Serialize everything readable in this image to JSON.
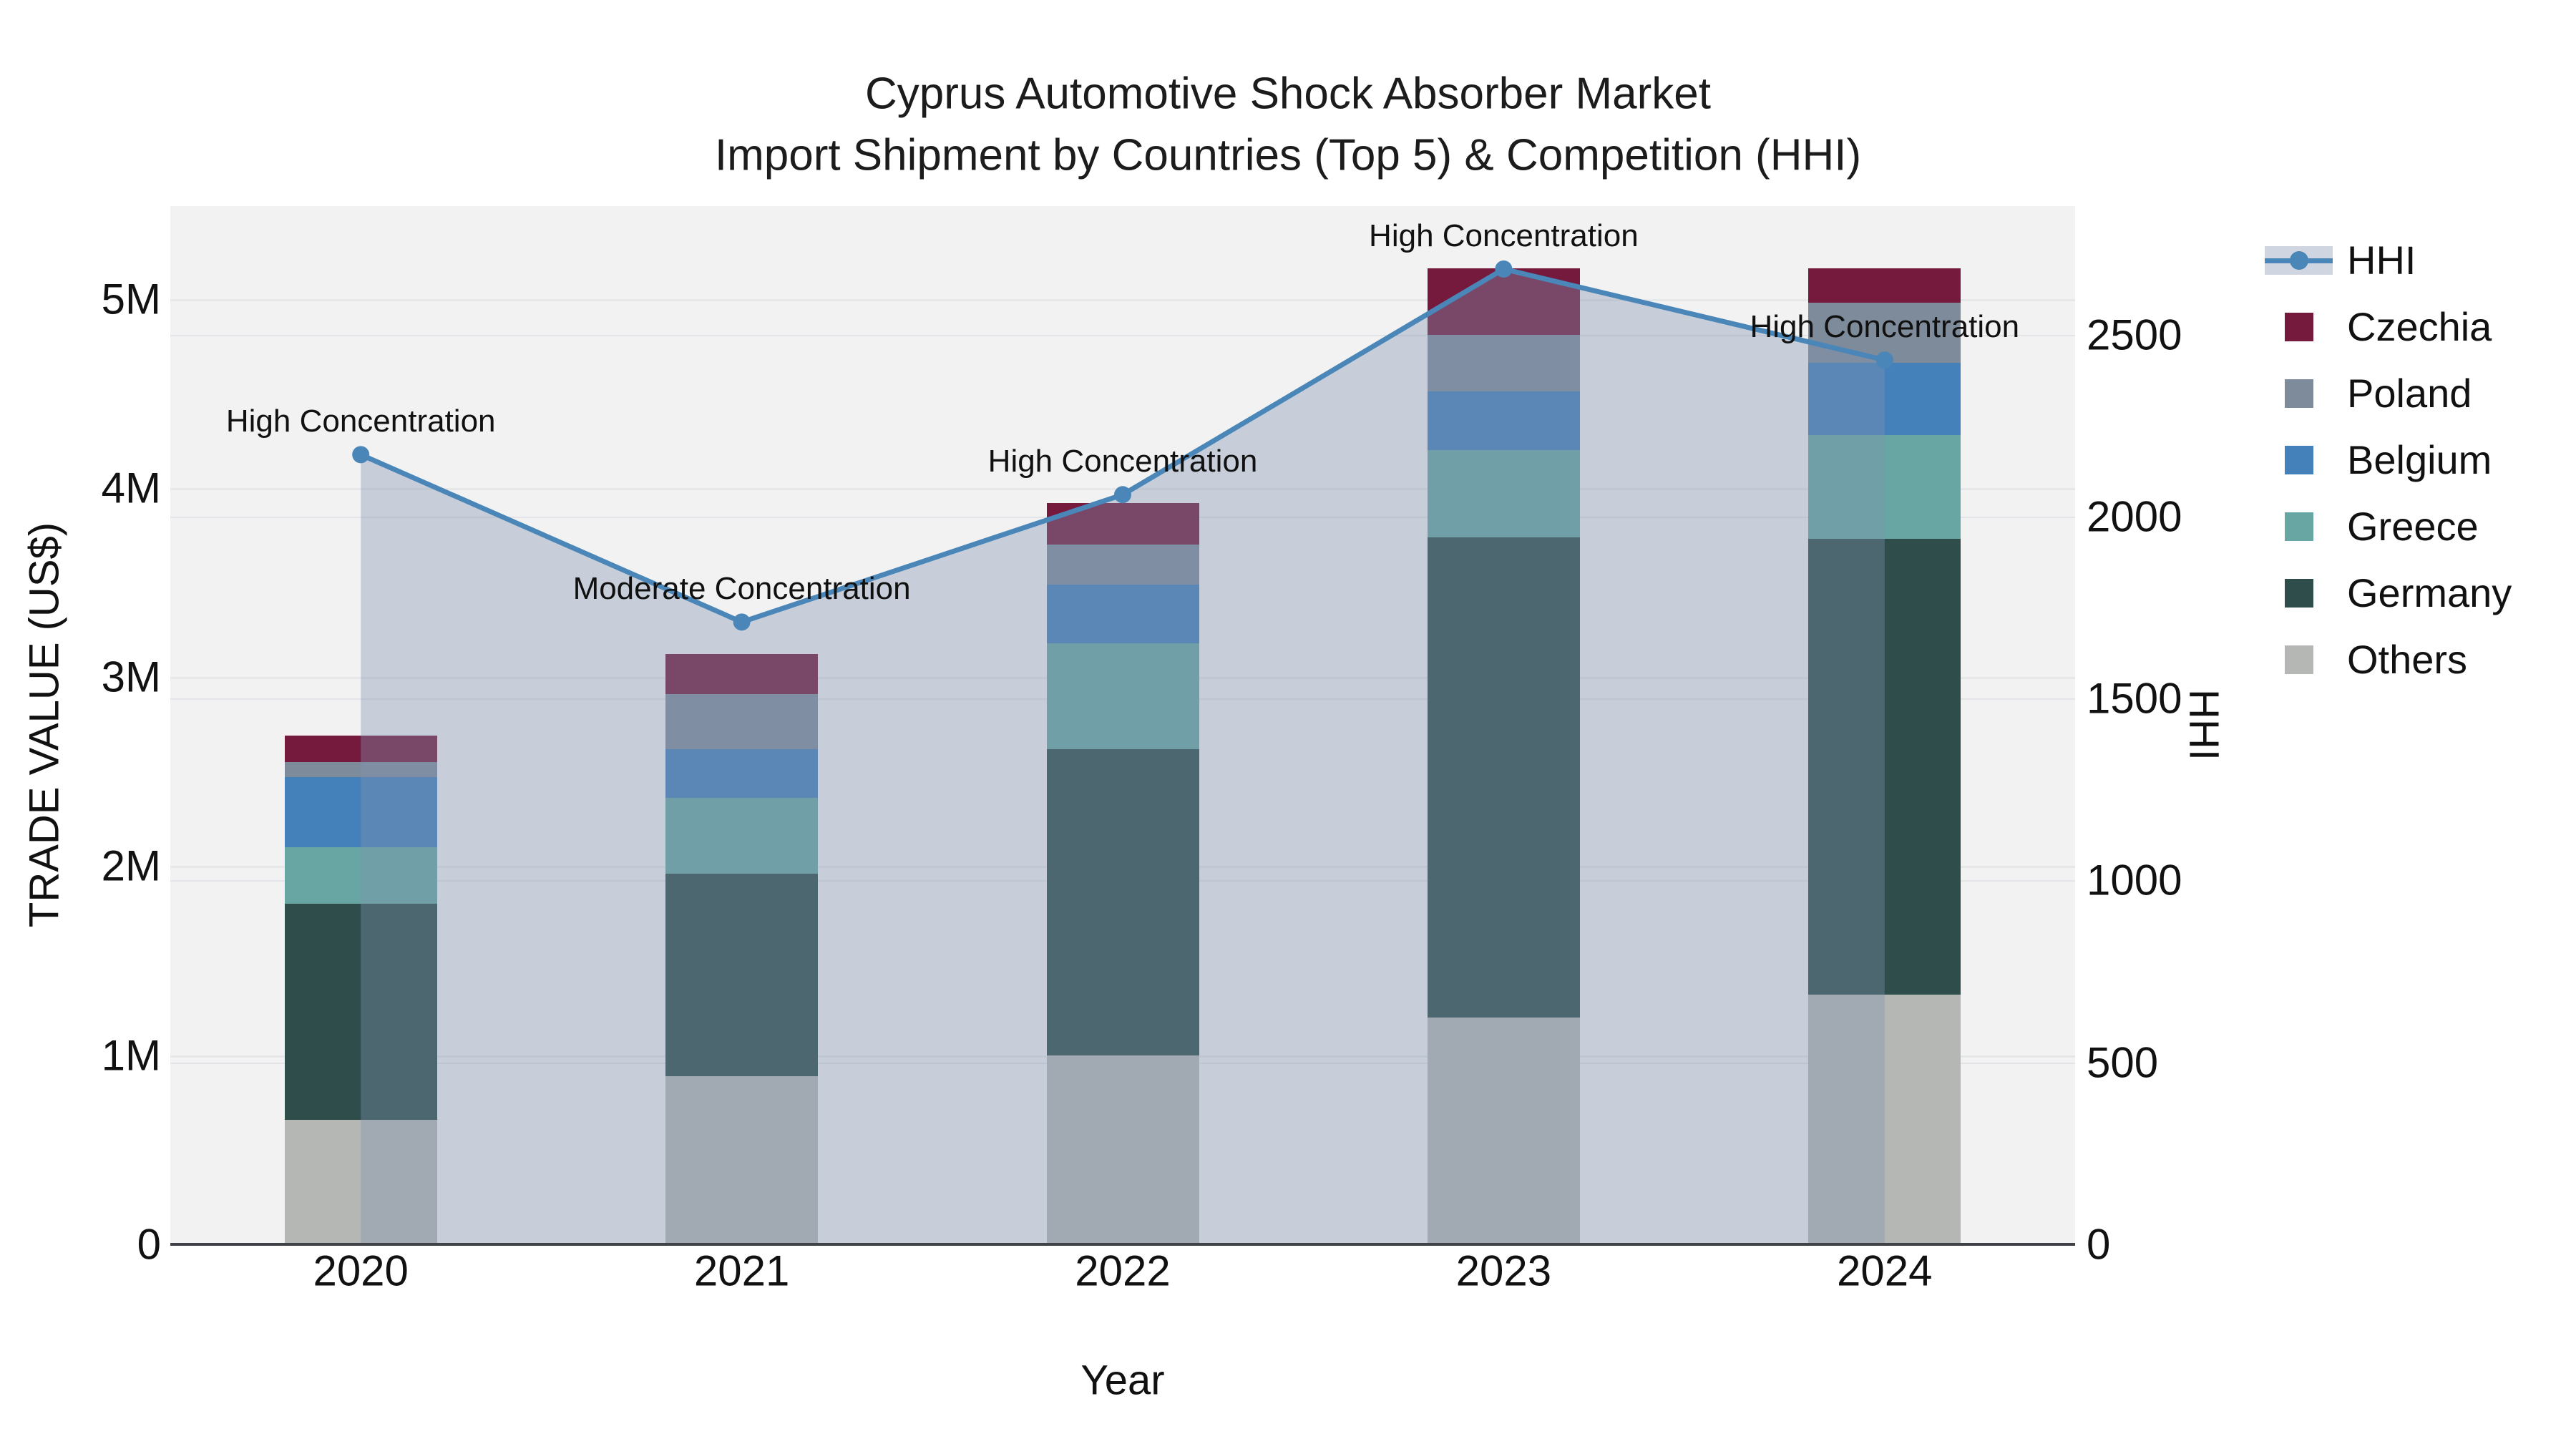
{
  "title": {
    "line1": "Cyprus Automotive Shock Absorber Market",
    "line2": "Import Shipment by Countries (Top 5) & Competition (HHI)"
  },
  "chart_data": {
    "type": "bar",
    "subtype": "stacked-bar with line overlay (dual axis)",
    "categories": [
      "2020",
      "2021",
      "2022",
      "2023",
      "2024"
    ],
    "value_unit": "US$ millions",
    "series": [
      {
        "name": "Others",
        "color": "#b5b7b5",
        "values": [
          0.66,
          0.89,
          1.0,
          1.2,
          1.32
        ]
      },
      {
        "name": "Germany",
        "color": "#2e4d4b",
        "values": [
          1.14,
          1.07,
          1.62,
          2.54,
          2.41
        ]
      },
      {
        "name": "Greece",
        "color": "#67a6a3",
        "values": [
          0.3,
          0.4,
          0.56,
          0.46,
          0.55
        ]
      },
      {
        "name": "Belgium",
        "color": "#4480ba",
        "values": [
          0.37,
          0.26,
          0.31,
          0.31,
          0.38
        ]
      },
      {
        "name": "Poland",
        "color": "#7e8b9b",
        "values": [
          0.08,
          0.29,
          0.21,
          0.3,
          0.32
        ]
      },
      {
        "name": "Czechia",
        "color": "#75193d",
        "values": [
          0.14,
          0.21,
          0.22,
          0.35,
          0.18
        ]
      }
    ],
    "stack_order": "bottom-to-top as listed",
    "totals": [
      2.69,
      3.12,
      3.92,
      5.16,
      5.16
    ],
    "line_series": {
      "name": "HHI",
      "color": "#4a86b8",
      "fill_color": "rgba(130,147,175,0.38)",
      "values": [
        2170,
        1710,
        2060,
        2680,
        2430
      ]
    },
    "annotations": [
      "High Concentration",
      "Moderate Concentration",
      "High Concentration",
      "High Concentration",
      "High Concentration"
    ],
    "x_axis": {
      "title": "Year"
    },
    "left_axis": {
      "title": "TRADE VALUE (US$)",
      "tick_labels": [
        "0",
        "1M",
        "2M",
        "3M",
        "4M",
        "5M"
      ],
      "tick_values": [
        0,
        1,
        2,
        3,
        4,
        5
      ],
      "range": [
        0,
        5.49
      ],
      "grid": true
    },
    "right_axis": {
      "title": "HHI",
      "tick_labels": [
        "0",
        "500",
        "1000",
        "1500",
        "2000",
        "2500"
      ],
      "tick_values": [
        0,
        500,
        1000,
        1500,
        2000,
        2500
      ],
      "range": [
        0,
        2853
      ],
      "grid": true
    },
    "legend": [
      "HHI",
      "Czechia",
      "Poland",
      "Belgium",
      "Greece",
      "Germany",
      "Others"
    ],
    "legend_position": "right"
  }
}
